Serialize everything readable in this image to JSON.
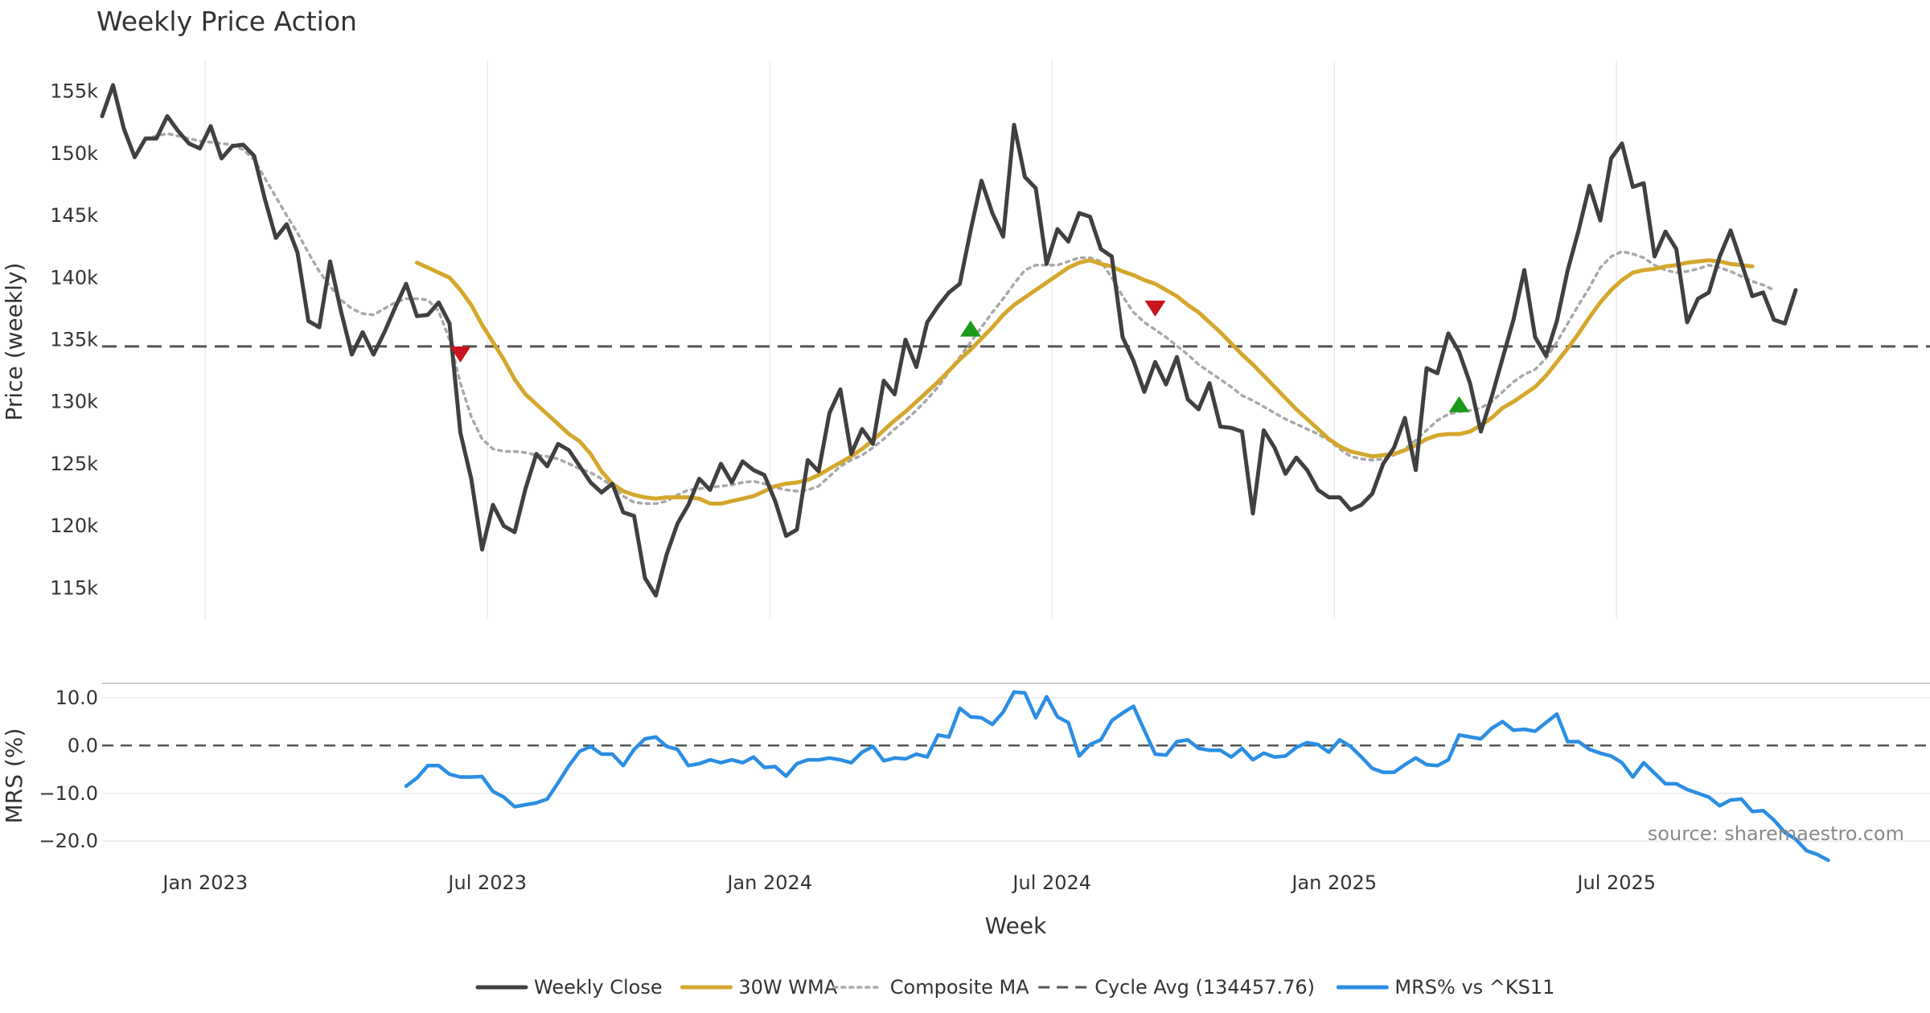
{
  "chart_data": [
    {
      "type": "line",
      "title": "Weekly Price Action",
      "ylabel": "Price (weekly)",
      "xlabel": "Week",
      "x_tick_labels": [
        "Jan 2023",
        "Jul 2023",
        "Jan 2024",
        "Jul 2024",
        "Jan 2025",
        "Jul 2025"
      ],
      "y_tick_labels": [
        "115k",
        "120k",
        "125k",
        "130k",
        "135k",
        "140k",
        "145k",
        "150k",
        "155k"
      ],
      "y_ticks": [
        115000,
        120000,
        125000,
        130000,
        135000,
        140000,
        145000,
        150000,
        155000
      ],
      "ylim": [
        112500,
        157500
      ],
      "grid": "vertical",
      "series": [
        {
          "name": "Weekly Close",
          "color": "#404040",
          "style": "solid",
          "values": [
            153000,
            155500,
            152000,
            149700,
            151200,
            151200,
            153000,
            151800,
            150800,
            150400,
            152200,
            149600,
            150600,
            150700,
            149800,
            146300,
            143200,
            144300,
            142000,
            136500,
            136000,
            141300,
            137300,
            133800,
            135600,
            133800,
            135600,
            137600,
            139500,
            136900,
            137000,
            138000,
            136300,
            127500,
            123800,
            118100,
            121700,
            120000,
            119500,
            123000,
            125800,
            124800,
            126600,
            126100,
            124800,
            123500,
            122700,
            123400,
            121100,
            120800,
            115800,
            114400,
            117700,
            120200,
            121700,
            123800,
            122900,
            125000,
            123500,
            125200,
            124500,
            124100,
            122000,
            119200,
            119700,
            125300,
            124400,
            129100,
            131000,
            125800,
            127800,
            126600,
            131700,
            130600,
            135000,
            132800,
            136400,
            137700,
            138800,
            139500,
            143800,
            147800,
            145200,
            143300,
            152300,
            148100,
            147200,
            141100,
            143900,
            142900,
            145200,
            144900,
            142300,
            141700,
            135200,
            133300,
            130800,
            133200,
            131400,
            133600,
            130200,
            129400,
            131500,
            128000,
            127900,
            127600,
            121000,
            127700,
            126300,
            124200,
            125500,
            124500,
            122900,
            122300,
            122300,
            121300,
            121700,
            122600,
            125000,
            126300,
            128700,
            124500,
            132700,
            132300,
            135500,
            134000,
            131500,
            127600,
            130400,
            133500,
            136600,
            140600,
            135200,
            133700,
            136500,
            140600,
            143800,
            147400,
            144600,
            149600,
            150800,
            147300,
            147600,
            141700,
            143700,
            142300,
            136400,
            138300,
            138800,
            141700,
            143800,
            141200,
            138500,
            138800,
            136600,
            136300,
            139000
          ]
        },
        {
          "name": "30W WMA",
          "color": "#d4a72c",
          "style": "solid",
          "values": [
            null,
            null,
            null,
            null,
            null,
            null,
            null,
            null,
            null,
            null,
            null,
            null,
            null,
            null,
            null,
            null,
            null,
            null,
            null,
            null,
            null,
            null,
            null,
            null,
            null,
            null,
            null,
            null,
            null,
            141200,
            140800,
            140400,
            140000,
            139000,
            137800,
            136200,
            134800,
            133400,
            131800,
            130600,
            129800,
            129000,
            128200,
            127400,
            126800,
            125800,
            124400,
            123400,
            122800,
            122500,
            122300,
            122200,
            122300,
            122300,
            122300,
            122200,
            121800,
            121800,
            122000,
            122200,
            122400,
            122800,
            123200,
            123400,
            123500,
            123700,
            124100,
            124600,
            125100,
            125600,
            126200,
            126900,
            127700,
            128500,
            129200,
            130000,
            130800,
            131600,
            132500,
            133400,
            134200,
            135100,
            136000,
            137000,
            137800,
            138400,
            139000,
            139600,
            140200,
            140800,
            141200,
            141400,
            141100,
            140900,
            140500,
            140200,
            139800,
            139500,
            139000,
            138500,
            137800,
            137200,
            136400,
            135600,
            134700,
            133800,
            133000,
            132100,
            131200,
            130300,
            129400,
            128600,
            127800,
            127000,
            126400,
            126000,
            125800,
            125600,
            125700,
            125800,
            126100,
            126500,
            127000,
            127300,
            127400,
            127400,
            127600,
            128100,
            128700,
            129500,
            130000,
            130600,
            131200,
            132100,
            133200,
            134300,
            135500,
            136800,
            138000,
            139000,
            139800,
            140400,
            140600,
            140700,
            140900,
            141000,
            141200,
            141300,
            141400,
            141300,
            141100,
            141000,
            140900
          ]
        },
        {
          "name": "Composite MA",
          "color": "#a8a8a8",
          "style": "dotted",
          "values": [
            null,
            null,
            null,
            null,
            151200,
            151400,
            151600,
            151400,
            151200,
            151000,
            150900,
            150800,
            150700,
            150300,
            149500,
            148000,
            146500,
            145000,
            143600,
            142000,
            140500,
            139300,
            138200,
            137500,
            137100,
            137000,
            137500,
            138000,
            138300,
            138300,
            138200,
            137300,
            135000,
            131500,
            128800,
            127000,
            126200,
            126000,
            126000,
            125900,
            125700,
            125600,
            125400,
            125000,
            124600,
            124300,
            123800,
            123200,
            122400,
            121900,
            121800,
            121800,
            122000,
            122500,
            122900,
            123000,
            123100,
            123200,
            123300,
            123500,
            123600,
            123400,
            123100,
            122900,
            122800,
            122900,
            123200,
            124000,
            124800,
            125300,
            125700,
            126300,
            127000,
            127800,
            128500,
            129300,
            130200,
            131200,
            132400,
            133600,
            134800,
            136000,
            137200,
            138300,
            139500,
            140600,
            141000,
            141000,
            141000,
            141300,
            141600,
            141600,
            141300,
            140000,
            138500,
            137200,
            136400,
            135800,
            135200,
            134500,
            133800,
            133000,
            132400,
            131800,
            131200,
            130500,
            130100,
            129600,
            129100,
            128600,
            128200,
            127800,
            127400,
            126900,
            126200,
            125600,
            125400,
            125300,
            125400,
            125700,
            126200,
            126900,
            127700,
            128500,
            129000,
            129200,
            129300,
            129500,
            130000,
            130800,
            131600,
            132200,
            132600,
            133500,
            134800,
            136300,
            137800,
            139200,
            140800,
            141700,
            142100,
            141900,
            141600,
            141000,
            140600,
            140400,
            140500,
            140700,
            141000,
            140800,
            140500,
            140100,
            139700,
            139400,
            139000
          ]
        },
        {
          "name": "Cycle Avg (134457.76)",
          "color": "#555555",
          "style": "dashed",
          "constant": 134457.76
        }
      ],
      "markers": [
        {
          "type": "sell",
          "shape": "triangle-down",
          "color": "#c8141e",
          "index": 33,
          "y": 133800
        },
        {
          "type": "buy",
          "shape": "triangle-up",
          "color": "#1a9a1a",
          "index": 80,
          "y": 135900
        },
        {
          "type": "sell",
          "shape": "triangle-down",
          "color": "#c8141e",
          "index": 97,
          "y": 137500
        },
        {
          "type": "buy",
          "shape": "triangle-up",
          "color": "#1a9a1a",
          "index": 125,
          "y": 129800
        }
      ]
    },
    {
      "type": "line",
      "ylabel": "MRS (%)",
      "y_tick_labels": [
        "10.0",
        "0.0",
        "−10.0",
        "−20.0"
      ],
      "y_ticks": [
        10,
        0,
        -10,
        -20
      ],
      "ylim": [
        -24,
        13
      ],
      "zero_line": "dashed",
      "series": [
        {
          "name": "MRS% vs ^KS11",
          "color": "#2b8ee3",
          "style": "solid",
          "values": [
            null,
            null,
            null,
            null,
            null,
            null,
            null,
            null,
            null,
            null,
            null,
            null,
            null,
            null,
            null,
            null,
            null,
            null,
            null,
            null,
            null,
            null,
            null,
            null,
            null,
            null,
            null,
            null,
            -8.5,
            -6.8,
            -4.2,
            -4.2,
            -6.0,
            -6.6,
            -6.6,
            -6.5,
            -9.6,
            -10.8,
            -12.8,
            -12.4,
            -12.0,
            -11.2,
            -7.8,
            -4.2,
            -1.2,
            -0.2,
            -1.8,
            -1.8,
            -4.2,
            -0.8,
            1.4,
            1.8,
            -0.2,
            -0.8,
            -4.2,
            -3.8,
            -3.0,
            -3.6,
            -3.0,
            -3.6,
            -2.4,
            -4.6,
            -4.4,
            -6.4,
            -3.8,
            -3.0,
            -3.0,
            -2.6,
            -3.0,
            -3.6,
            -1.4,
            -0.2,
            -3.2,
            -2.6,
            -2.8,
            -1.8,
            -2.4,
            2.2,
            1.8,
            7.8,
            6.0,
            5.8,
            4.4,
            7.0,
            11.2,
            11.0,
            5.8,
            10.2,
            6.0,
            4.8,
            -2.2,
            0.2,
            1.2,
            5.2,
            6.8,
            8.2,
            3.2,
            -1.8,
            -2.0,
            0.8,
            1.2,
            -0.6,
            -1.0,
            -1.0,
            -2.4,
            -0.6,
            -3.0,
            -1.6,
            -2.4,
            -2.2,
            -0.4,
            0.6,
            0.2,
            -1.4,
            1.2,
            -0.2,
            -2.4,
            -4.8,
            -5.6,
            -5.6,
            -4.0,
            -2.6,
            -4.0,
            -4.2,
            -3.0,
            2.2,
            1.8,
            1.4,
            3.6,
            5.0,
            3.2,
            3.4,
            3.0,
            4.8,
            6.6,
            0.8,
            0.8,
            -0.8,
            -1.6,
            -2.2,
            -3.6,
            -6.6,
            -3.6,
            -5.8,
            -8.0,
            -8.0,
            -9.2,
            -10.0,
            -10.8,
            -12.6,
            -11.4,
            -11.2,
            -13.8,
            -13.6,
            -15.6,
            -18.2,
            -19.6,
            -22.0,
            -22.8,
            -24.0
          ]
        }
      ]
    }
  ],
  "source": "source: sharemaestro.com",
  "legend": [
    {
      "label": "Weekly Close",
      "color": "#404040",
      "style": "solid"
    },
    {
      "label": "30W WMA",
      "color": "#d4a72c",
      "style": "solid"
    },
    {
      "label": "Composite MA",
      "color": "#a8a8a8",
      "style": "dotted"
    },
    {
      "label": "Cycle Avg (134457.76)",
      "color": "#555555",
      "style": "dashed"
    },
    {
      "label": "MRS% vs ^KS11",
      "color": "#2b8ee3",
      "style": "solid"
    }
  ]
}
